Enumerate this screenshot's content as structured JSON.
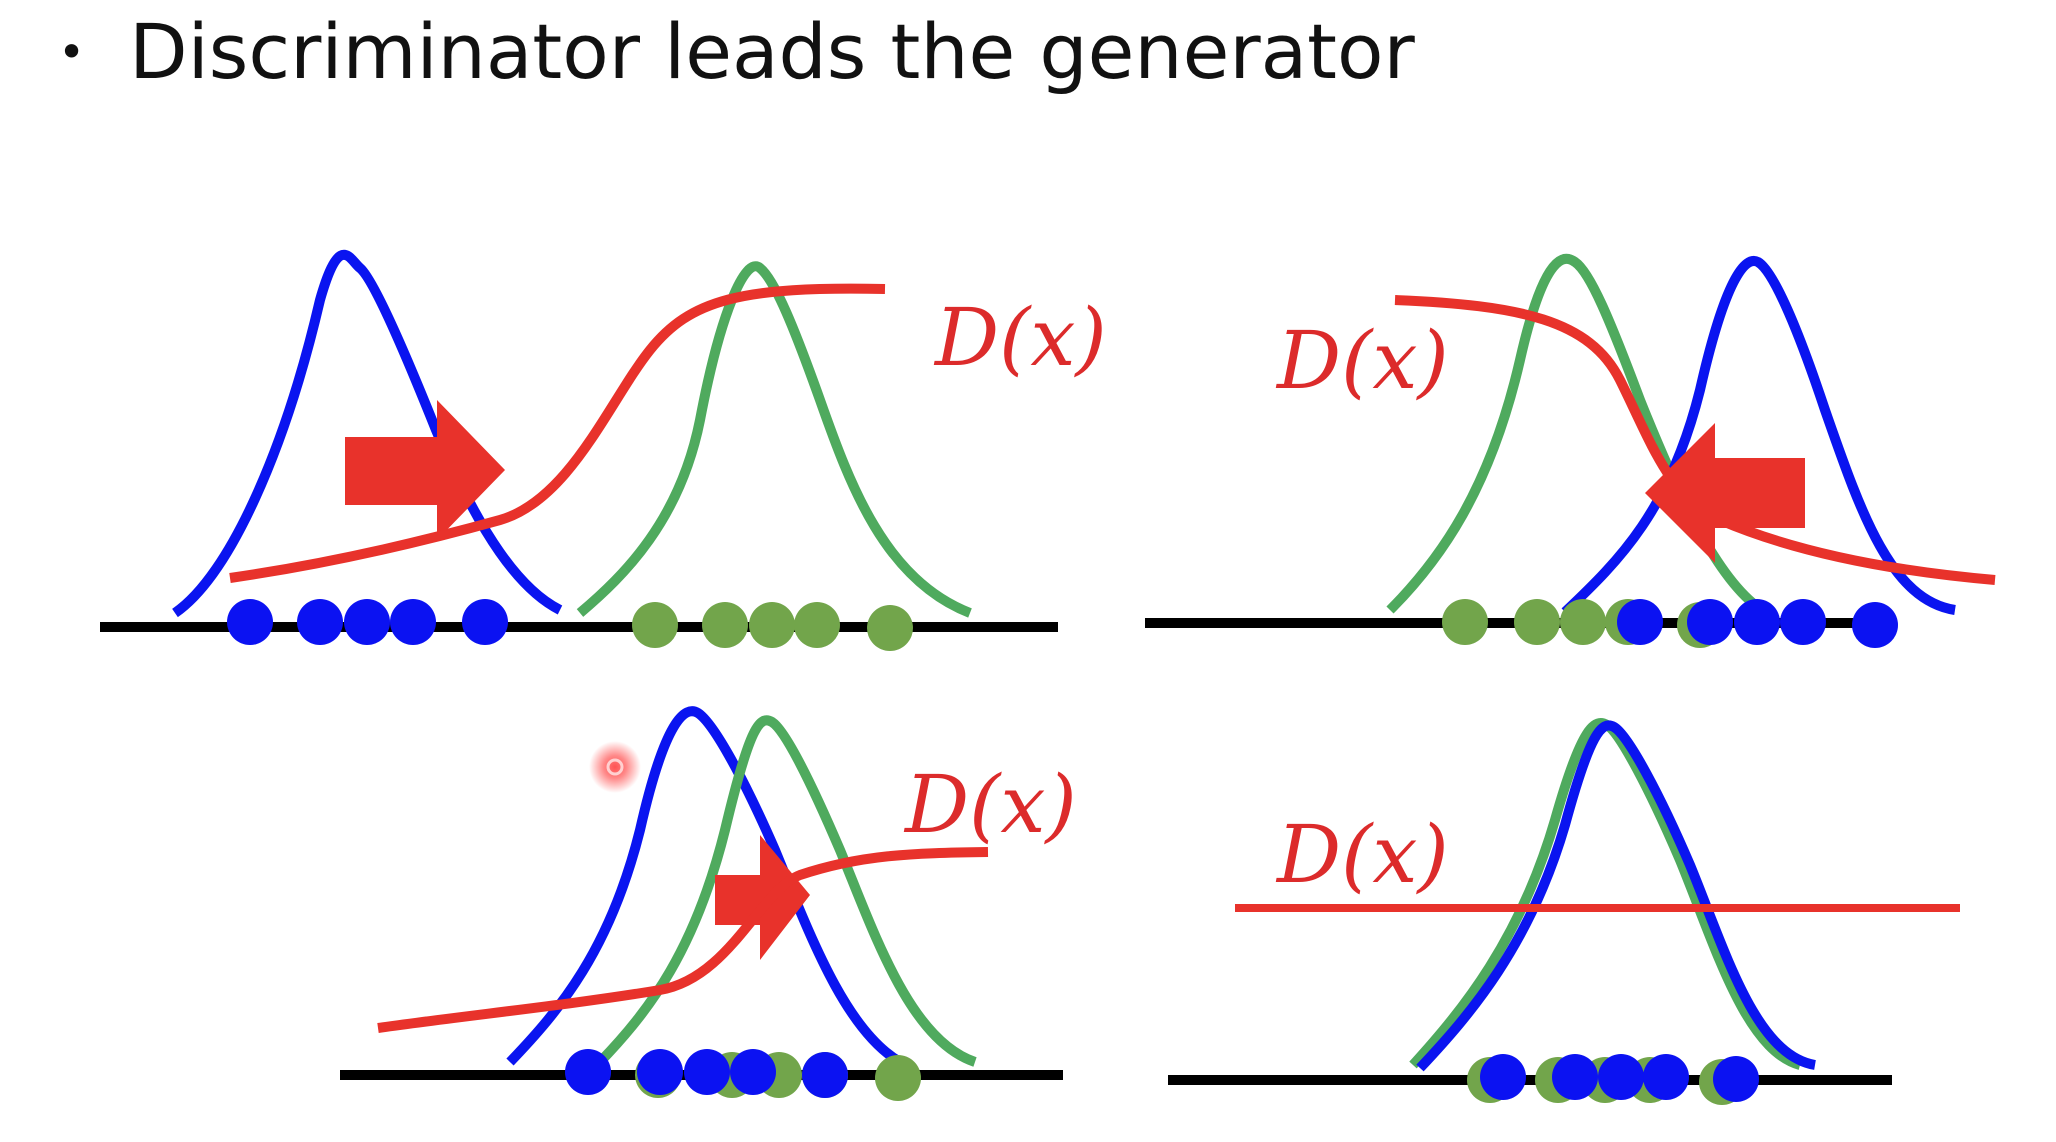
{
  "slide": {
    "bullet": "•",
    "title": "Discriminator leads the generator"
  },
  "colors": {
    "generated": "#0a14f0",
    "real": "#4faa5e",
    "discriminator": "#e8322b",
    "axis": "#000000",
    "generated_point": "#0b12f2",
    "real_point": "#72a54b"
  },
  "panels": [
    {
      "id": "top-left",
      "d_label": "D(x)",
      "arrow_direction": "right"
    },
    {
      "id": "top-right",
      "d_label": "D(x)",
      "arrow_direction": "left"
    },
    {
      "id": "bottom-left",
      "d_label": "D(x)",
      "arrow_direction": "right"
    },
    {
      "id": "bottom-right",
      "d_label": "D(x)",
      "arrow_direction": "none"
    }
  ],
  "icons": {
    "pointer": "laser-pointer-icon",
    "arrow": "red-arrow-icon"
  }
}
